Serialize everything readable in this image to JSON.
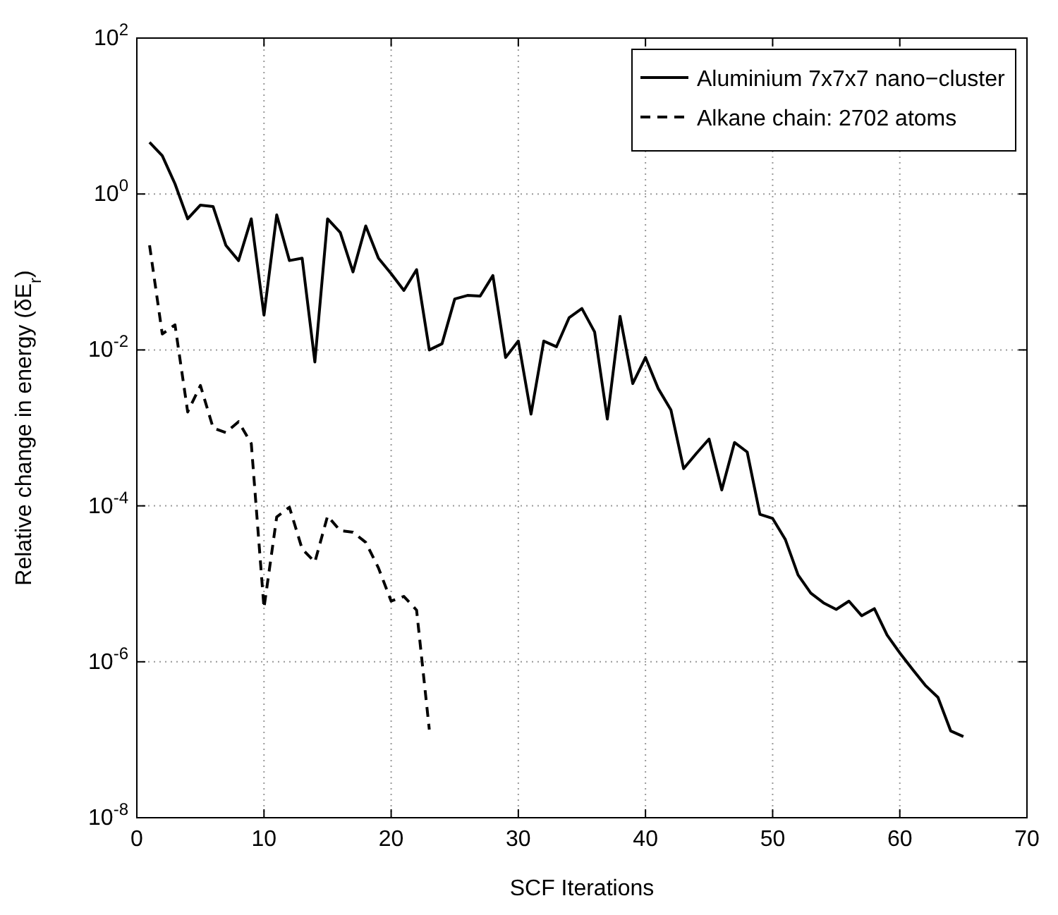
{
  "chart_data": {
    "type": "line",
    "xlabel": "SCF Iterations",
    "ylabel": "Relative change in energy (δE$_{r}$)",
    "log": "y",
    "grid": true,
    "legend": "top right",
    "xlim": [
      0,
      70
    ],
    "xticks": [
      0,
      10,
      20,
      30,
      40,
      50,
      60,
      70
    ],
    "ylim": [
      1e-08,
      100
    ],
    "yticks": [
      {
        "value": 1e-08,
        "label": "10$^{-8}$"
      },
      {
        "value": 1e-06,
        "label": "10$^{-6}$"
      },
      {
        "value": 0.0001,
        "label": "10$^{-4}$"
      },
      {
        "value": 0.01,
        "label": "10$^{-2}$"
      },
      {
        "value": 1,
        "label": "10$^{0}$"
      },
      {
        "value": 100,
        "label": "10$^{2}$"
      }
    ],
    "series": [
      {
        "name": "Aluminium 7x7x7 nano−cluster",
        "color": "#000000",
        "line_style": "solid",
        "x": [
          1,
          2,
          3,
          4,
          5,
          6,
          7,
          8,
          9,
          10,
          11,
          12,
          13,
          14,
          15,
          16,
          17,
          18,
          19,
          20,
          21,
          22,
          23,
          24,
          25,
          26,
          27,
          28,
          29,
          30,
          31,
          32,
          33,
          34,
          35,
          36,
          37,
          38,
          39,
          40,
          41,
          42,
          43,
          44,
          45,
          46,
          47,
          48,
          49,
          50,
          51,
          52,
          53,
          54,
          55,
          56,
          57,
          58,
          59,
          60,
          61,
          62,
          63,
          64,
          65
        ],
        "values": [
          4.6,
          3.1,
          1.35,
          0.48,
          0.72,
          0.69,
          0.22,
          0.14,
          0.48,
          0.028,
          0.54,
          0.14,
          0.15,
          0.007,
          0.48,
          0.32,
          0.1,
          0.39,
          0.15,
          0.095,
          0.058,
          0.107,
          0.01,
          0.012,
          0.045,
          0.05,
          0.049,
          0.09,
          0.008,
          0.013,
          0.0015,
          0.013,
          0.011,
          0.026,
          0.034,
          0.017,
          0.0013,
          0.027,
          0.0037,
          0.008,
          0.0032,
          0.0017,
          0.0003,
          0.00047,
          0.00072,
          0.00016,
          0.00065,
          0.00049,
          7.8e-05,
          6.9e-05,
          3.7e-05,
          1.3e-05,
          7.6e-06,
          5.7e-06,
          4.7e-06,
          6e-06,
          3.9e-06,
          4.8e-06,
          2.2e-06,
          1.3e-06,
          8e-07,
          5e-07,
          3.5e-07,
          1.3e-07,
          1.1e-07
        ]
      },
      {
        "name": "Alkane chain: 2702 atoms",
        "color": "#000000",
        "line_style": "dashed",
        "x": [
          1,
          2,
          3,
          4,
          5,
          6,
          7,
          8,
          9,
          10,
          11,
          12,
          13,
          14,
          15,
          16,
          17,
          18,
          19,
          20,
          21,
          22,
          23
        ],
        "values": [
          0.22,
          0.016,
          0.021,
          0.0016,
          0.0035,
          0.001,
          0.00087,
          0.0012,
          0.00063,
          4.9e-06,
          7.2e-05,
          9.6e-05,
          2.8e-05,
          1.9e-05,
          7.4e-05,
          4.8e-05,
          4.6e-05,
          3.4e-05,
          1.6e-05,
          6e-06,
          6.9e-06,
          4.6e-06,
          1.35e-07
        ]
      }
    ]
  }
}
